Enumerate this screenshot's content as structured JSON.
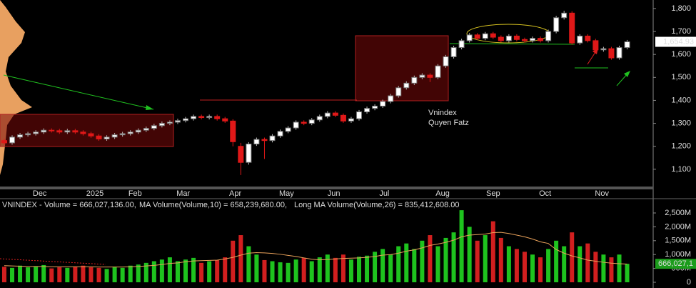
{
  "chart_data": [
    {
      "type": "candlestick",
      "xlim": [
        -0.54,
        82.3
      ],
      "ylim": [
        1028,
        1837
      ],
      "xticks": [
        {
          "value": 4.5,
          "label": "Dec"
        },
        {
          "value": 11.5,
          "label": "2025"
        },
        {
          "value": 16.6,
          "label": "Feb"
        },
        {
          "value": 22.7,
          "label": "Mar"
        },
        {
          "value": 29.3,
          "label": "Apr"
        },
        {
          "value": 35.8,
          "label": "May"
        },
        {
          "value": 41.8,
          "label": "Jun"
        },
        {
          "value": 48.2,
          "label": "Jul"
        },
        {
          "value": 55.6,
          "label": "Aug"
        },
        {
          "value": 62,
          "label": "Sep"
        },
        {
          "value": 68.6,
          "label": "Oct"
        },
        {
          "value": 75.8,
          "label": "Nov"
        }
      ],
      "yticks": [
        {
          "value": 1100,
          "label": "1,100"
        },
        {
          "value": 1200,
          "label": "1,200"
        },
        {
          "value": 1300,
          "label": "1,300"
        },
        {
          "value": 1400,
          "label": "1,400"
        },
        {
          "value": 1500,
          "label": "1,500"
        },
        {
          "value": 1600,
          "label": "1,600"
        },
        {
          "value": 1700,
          "label": "1,700"
        },
        {
          "value": 1800,
          "label": "1,800"
        }
      ],
      "last_price": {
        "value": 1654.93,
        "label": "1,654.93"
      },
      "annotations": [
        "Vnindex",
        "Quyen Fatz"
      ],
      "up_color": "#ffffff",
      "down_color": "#e01818",
      "open": [
        1225,
        1215,
        1240,
        1250,
        1255,
        1262,
        1270,
        1268,
        1262,
        1268,
        1262,
        1255,
        1245,
        1232,
        1240,
        1250,
        1255,
        1262,
        1270,
        1278,
        1290,
        1300,
        1305,
        1312,
        1320,
        1330,
        1325,
        1330,
        1320,
        1310,
        1200,
        1130,
        1210,
        1230,
        1225,
        1245,
        1265,
        1280,
        1305,
        1300,
        1315,
        1330,
        1345,
        1335,
        1310,
        1320,
        1350,
        1365,
        1375,
        1395,
        1420,
        1455,
        1475,
        1500,
        1510,
        1500,
        1550,
        1590,
        1630,
        1660,
        1685,
        1670,
        1690,
        1675,
        1660,
        1680,
        1665,
        1660,
        1670,
        1660,
        1700,
        1760,
        1780,
        1650,
        1680,
        1660,
        1620,
        1625,
        1585,
        1630
      ],
      "high": [
        1233,
        1248,
        1258,
        1263,
        1270,
        1278,
        1278,
        1276,
        1276,
        1276,
        1270,
        1263,
        1253,
        1248,
        1258,
        1263,
        1270,
        1278,
        1286,
        1298,
        1308,
        1313,
        1320,
        1328,
        1338,
        1338,
        1338,
        1338,
        1328,
        1318,
        1215,
        1218,
        1238,
        1238,
        1253,
        1273,
        1288,
        1313,
        1313,
        1323,
        1338,
        1353,
        1353,
        1343,
        1328,
        1358,
        1373,
        1383,
        1403,
        1428,
        1463,
        1483,
        1508,
        1518,
        1518,
        1558,
        1598,
        1638,
        1668,
        1693,
        1693,
        1698,
        1698,
        1683,
        1688,
        1688,
        1673,
        1678,
        1678,
        1708,
        1768,
        1790,
        1788,
        1688,
        1688,
        1668,
        1633,
        1633,
        1638,
        1663
      ],
      "low": [
        1207,
        1207,
        1232,
        1242,
        1247,
        1254,
        1260,
        1254,
        1254,
        1254,
        1247,
        1237,
        1224,
        1224,
        1232,
        1242,
        1247,
        1254,
        1262,
        1270,
        1282,
        1292,
        1297,
        1304,
        1312,
        1317,
        1317,
        1312,
        1302,
        1200,
        1075,
        1120,
        1202,
        1145,
        1217,
        1237,
        1257,
        1272,
        1292,
        1292,
        1307,
        1322,
        1327,
        1302,
        1302,
        1312,
        1342,
        1357,
        1367,
        1387,
        1412,
        1447,
        1467,
        1492,
        1480,
        1492,
        1542,
        1582,
        1622,
        1652,
        1662,
        1662,
        1667,
        1652,
        1652,
        1657,
        1652,
        1652,
        1652,
        1652,
        1692,
        1752,
        1642,
        1642,
        1652,
        1612,
        1612,
        1577,
        1577,
        1622
      ],
      "close": [
        1215,
        1240,
        1250,
        1255,
        1262,
        1270,
        1268,
        1262,
        1268,
        1262,
        1255,
        1245,
        1232,
        1240,
        1250,
        1255,
        1262,
        1270,
        1278,
        1290,
        1300,
        1305,
        1312,
        1320,
        1330,
        1325,
        1330,
        1320,
        1310,
        1220,
        1130,
        1210,
        1230,
        1225,
        1245,
        1265,
        1280,
        1305,
        1300,
        1315,
        1330,
        1345,
        1335,
        1310,
        1320,
        1350,
        1365,
        1375,
        1395,
        1420,
        1455,
        1475,
        1500,
        1510,
        1500,
        1550,
        1590,
        1630,
        1660,
        1685,
        1670,
        1690,
        1675,
        1660,
        1680,
        1665,
        1660,
        1670,
        1660,
        1700,
        1760,
        1780,
        1650,
        1680,
        1660,
        1620,
        1625,
        1585,
        1630,
        1655
      ]
    },
    {
      "type": "bar",
      "title": "VNINDEX - ",
      "xlim": [
        -0.54,
        82.3
      ],
      "ylim": [
        -129,
        2964
      ],
      "yticks": [
        0,
        {
          "value": 500,
          "label": "500M"
        },
        {
          "value": 1000,
          "label": "1,000M"
        },
        {
          "value": 1500,
          "label": "1,500M"
        },
        {
          "value": 2000,
          "label": "2,000M"
        },
        {
          "value": 2500,
          "label": "2,500M"
        }
      ],
      "last_label": "666,027,1",
      "series": [
        {
          "name": "Volume = 666,027,136.00,",
          "color": "#1ec31e",
          "down_color": "#d21f1f",
          "values": [
            560,
            520,
            600,
            540,
            580,
            620,
            500,
            540,
            520,
            560,
            600,
            540,
            520,
            480,
            560,
            520,
            600,
            640,
            700,
            760,
            820,
            900,
            760,
            820,
            880,
            700,
            760,
            800,
            900,
            1500,
            1700,
            1300,
            1000,
            800,
            760,
            720,
            700,
            820,
            880,
            760,
            900,
            1000,
            880,
            1000,
            820,
            920,
            960,
            1100,
            1200,
            1000,
            1300,
            1400,
            1200,
            1500,
            1700,
            1300,
            1600,
            1800,
            2600,
            2000,
            1500,
            1700,
            2200,
            1600,
            1300,
            1200,
            1100,
            1000,
            900,
            1200,
            1500,
            1300,
            1800,
            1300,
            1400,
            1100,
            1000,
            900,
            1000,
            666.027136
          ]
        },
        {
          "name": "MA Volume(Volume,10) = 658,239,680.00,",
          "color": "#e8a15a",
          "values": [
            600,
            590,
            580,
            570,
            570,
            570,
            560,
            560,
            560,
            560,
            560,
            560,
            550,
            550,
            550,
            550,
            560,
            570,
            590,
            610,
            640,
            680,
            700,
            740,
            770,
            780,
            790,
            800,
            840,
            900,
            980,
            1050,
            1070,
            1060,
            1040,
            1010,
            970,
            930,
            880,
            830,
            810,
            820,
            840,
            860,
            870,
            880,
            900,
            930,
            980,
            1000,
            1050,
            1120,
            1170,
            1240,
            1330,
            1380,
            1440,
            1520,
            1640,
            1700,
            1720,
            1740,
            1790,
            1800,
            1760,
            1700,
            1640,
            1560,
            1460,
            1400,
            1180,
            1050,
            950,
            880,
            800,
            760,
            720,
            690,
            670,
            658.23968
          ]
        },
        {
          "name": "Long MA Volume(Volume,26) = 835,412,608.00",
          "color": "#3040e0",
          "values": []
        }
      ]
    }
  ]
}
